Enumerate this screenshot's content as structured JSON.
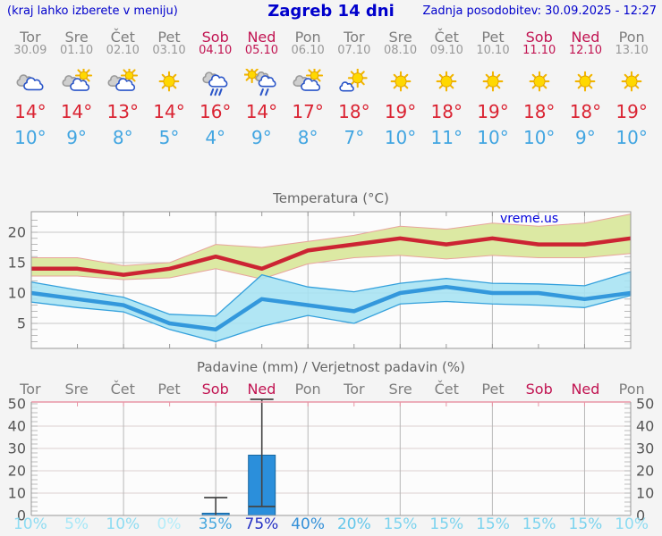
{
  "header": {
    "menu_note": "(kraj lahko izberete v meniju)",
    "title": "Zagreb 14 dni",
    "last_updated": "Zadnja posodobitev: 30.09.2025 - 12:27"
  },
  "colors": {
    "header_blue": "#0000cc",
    "weekday_gray": "#7d7d7d",
    "weekend_red": "#c11351",
    "high_temp_red": "#da2332",
    "low_temp_blue": "#41a5e1",
    "max_line": "#cc2433",
    "max_band_fill": "#dce9a3",
    "max_band_edge": "#e8a49c",
    "min_line": "#3398dc",
    "min_band_fill": "#a6e3f3",
    "min_band_edge": "#33a0dc",
    "bar_fill": "#2b8fdb",
    "bar_edge": "#17669f",
    "whisker": "#444444",
    "precip_top_border": "#e895a5",
    "grid_major": "#c8c8c8",
    "grid_vertical": "#b8b8b8",
    "axis": "#999999",
    "label_gray": "#555555"
  },
  "days": [
    {
      "name": "Tor",
      "date": "30.09",
      "weekend": false,
      "icon": "cloudy",
      "high": "14°",
      "low": "10°",
      "precip_prob": "10%",
      "prob_color": "#8edcf2"
    },
    {
      "name": "Sre",
      "date": "01.10",
      "weekend": false,
      "icon": "partly-sunny",
      "high": "14°",
      "low": "9°",
      "precip_prob": "5%",
      "prob_color": "#a6e7f7"
    },
    {
      "name": "Čet",
      "date": "02.10",
      "weekend": false,
      "icon": "partly-sunny",
      "high": "13°",
      "low": "8°",
      "precip_prob": "10%",
      "prob_color": "#8edcf2"
    },
    {
      "name": "Pet",
      "date": "03.10",
      "weekend": false,
      "icon": "sunny",
      "high": "14°",
      "low": "5°",
      "precip_prob": "0%",
      "prob_color": "#b4ecf9"
    },
    {
      "name": "Sob",
      "date": "04.10",
      "weekend": true,
      "icon": "rain",
      "high": "16°",
      "low": "4°",
      "precip_prob": "35%",
      "prob_color": "#47a7de"
    },
    {
      "name": "Ned",
      "date": "05.10",
      "weekend": true,
      "icon": "sun-showers",
      "high": "14°",
      "low": "9°",
      "precip_prob": "75%",
      "prob_color": "#2430c4"
    },
    {
      "name": "Pon",
      "date": "06.10",
      "weekend": false,
      "icon": "partly-sunny",
      "high": "17°",
      "low": "8°",
      "precip_prob": "40%",
      "prob_color": "#3390d8"
    },
    {
      "name": "Tor",
      "date": "07.10",
      "weekend": false,
      "icon": "mostly-sunny",
      "high": "18°",
      "low": "7°",
      "precip_prob": "20%",
      "prob_color": "#63c6ea"
    },
    {
      "name": "Sre",
      "date": "08.10",
      "weekend": false,
      "icon": "sunny",
      "high": "19°",
      "low": "10°",
      "precip_prob": "15%",
      "prob_color": "#7bd3ee"
    },
    {
      "name": "Čet",
      "date": "09.10",
      "weekend": false,
      "icon": "sunny",
      "high": "18°",
      "low": "11°",
      "precip_prob": "15%",
      "prob_color": "#7bd3ee"
    },
    {
      "name": "Pet",
      "date": "10.10",
      "weekend": false,
      "icon": "sunny",
      "high": "19°",
      "low": "10°",
      "precip_prob": "15%",
      "prob_color": "#7bd3ee"
    },
    {
      "name": "Sob",
      "date": "11.10",
      "weekend": true,
      "icon": "sunny",
      "high": "18°",
      "low": "10°",
      "precip_prob": "15%",
      "prob_color": "#7bd3ee"
    },
    {
      "name": "Ned",
      "date": "12.10",
      "weekend": true,
      "icon": "sunny",
      "high": "18°",
      "low": "9°",
      "precip_prob": "15%",
      "prob_color": "#7bd3ee"
    },
    {
      "name": "Pon",
      "date": "13.10",
      "weekend": false,
      "icon": "sunny",
      "high": "19°",
      "low": "10°",
      "precip_prob": "10%",
      "prob_color": "#8edcf2"
    }
  ],
  "chart_data": [
    {
      "type": "area",
      "title": "Temperatura (°C)",
      "watermark": "vreme.us",
      "categories": [
        "Tor",
        "Sre",
        "Čet",
        "Pet",
        "Sob",
        "Ned",
        "Pon",
        "Tor",
        "Sre",
        "Čet",
        "Pet",
        "Sob",
        "Ned",
        "Pon"
      ],
      "ylim": [
        1,
        23.5
      ],
      "yticks": [
        5,
        10,
        15,
        20
      ],
      "grid": "horizontal major lines, vertical line every 2 days, minor ticks every 1 °C",
      "legend_position": "none",
      "series": [
        {
          "name": "max-temp",
          "color": "#cc2433",
          "values": [
            14,
            14,
            13,
            14,
            16,
            14,
            17,
            18,
            19,
            18,
            19,
            18,
            18,
            19
          ]
        },
        {
          "name": "max-range-upper",
          "values": [
            15.8,
            15.8,
            14.5,
            15,
            18,
            17.5,
            18.5,
            19.5,
            21,
            20.5,
            21.5,
            21,
            21.5,
            23
          ]
        },
        {
          "name": "max-range-lower",
          "values": [
            12.8,
            12.8,
            12.2,
            12.5,
            14,
            12.3,
            14.8,
            15.8,
            16.2,
            15.6,
            16.2,
            15.8,
            15.8,
            16.5
          ]
        },
        {
          "name": "min-temp",
          "color": "#3398dc",
          "values": [
            10,
            9,
            8,
            5,
            4,
            9,
            8,
            7,
            10,
            11,
            10,
            10,
            9,
            10
          ]
        },
        {
          "name": "min-range-upper",
          "values": [
            11.8,
            10.5,
            9.3,
            6.5,
            6.2,
            13,
            11,
            10.2,
            11.6,
            12.4,
            11.6,
            11.5,
            11.2,
            13.5
          ]
        },
        {
          "name": "min-range-lower",
          "values": [
            8.5,
            7.6,
            6.9,
            4,
            2,
            4.5,
            6.3,
            5,
            8.2,
            8.6,
            8.2,
            8,
            7.6,
            9.6
          ]
        }
      ]
    },
    {
      "type": "bar",
      "title": "Padavine (mm) / Verjetnost padavin (%)",
      "categories": [
        "Tor",
        "Sre",
        "Čet",
        "Pet",
        "Sob",
        "Ned",
        "Pon",
        "Tor",
        "Sre",
        "Čet",
        "Pet",
        "Sob",
        "Ned",
        "Pon"
      ],
      "ylim": [
        0,
        52
      ],
      "yticks": [
        0,
        10,
        20,
        30,
        40,
        50
      ],
      "grid": "horizontal lines every 10 mm, vertical line every 2 days, minor ticks every 2 mm",
      "values": [
        0,
        0,
        0,
        0,
        1,
        27,
        0,
        0,
        0,
        0,
        0,
        0,
        0,
        0
      ],
      "bars": [
        {
          "day_index": 4,
          "value": 1,
          "range": [
            0,
            8
          ]
        },
        {
          "day_index": 5,
          "value": 27,
          "range": [
            4,
            52
          ]
        }
      ],
      "probabilities": [
        "10%",
        "5%",
        "10%",
        "0%",
        "35%",
        "75%",
        "40%",
        "20%",
        "15%",
        "15%",
        "15%",
        "15%",
        "15%",
        "10%"
      ]
    }
  ]
}
